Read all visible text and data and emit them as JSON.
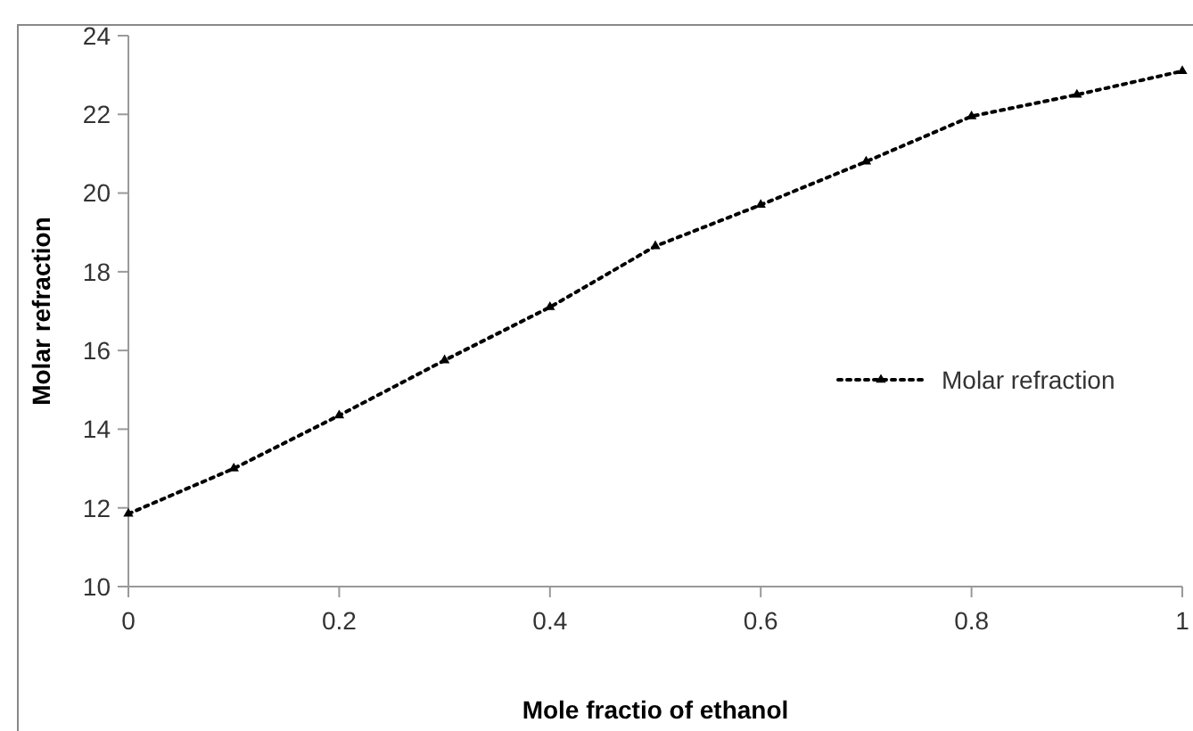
{
  "chart_data": {
    "type": "line",
    "xlabel": "Mole fractio of ethanol",
    "ylabel": "Molar refraction",
    "x": [
      0,
      0.1,
      0.2,
      0.3,
      0.4,
      0.5,
      0.6,
      0.7,
      0.8,
      0.9,
      1
    ],
    "series": [
      {
        "name": "Molar refraction",
        "color": "#000000",
        "values": [
          11.85,
          13.0,
          14.35,
          15.75,
          17.1,
          18.65,
          19.7,
          20.8,
          21.95,
          22.5,
          23.1
        ]
      }
    ],
    "xlim": [
      0,
      1
    ],
    "xticks": [
      0,
      0.2,
      0.4,
      0.6,
      0.8,
      1
    ],
    "ylim": [
      10,
      24
    ],
    "yticks": [
      10,
      12,
      14,
      16,
      18,
      20,
      22,
      24
    ],
    "grid": false,
    "legend": "right",
    "marker": "triangle",
    "line_style": "dotted"
  }
}
